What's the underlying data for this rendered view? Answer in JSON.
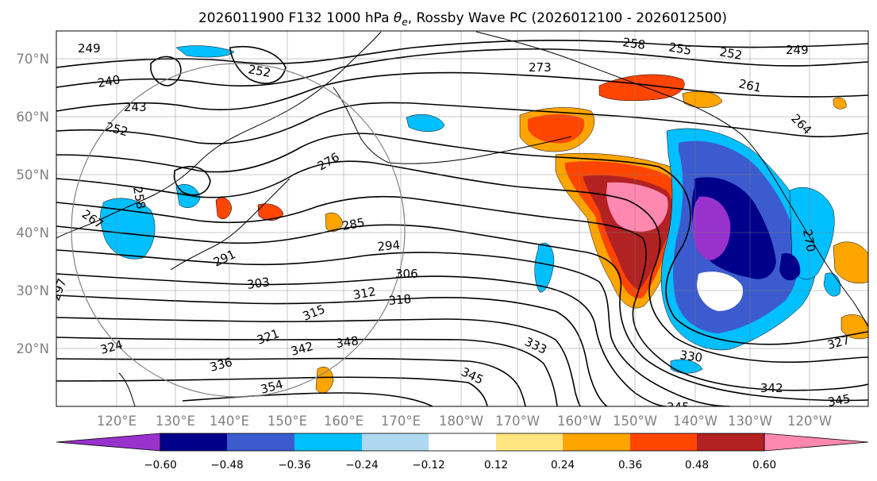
{
  "title_prefix": "2026011900 F132 1000 hPa ",
  "title_symbol": "θ",
  "title_subscript": "e",
  "title_suffix": ", Rossby Wave PC (2026012100 - 2026012500)",
  "lat_labels": [
    "70°N",
    "60°N",
    "50°N",
    "40°N",
    "30°N",
    "20°N"
  ],
  "lon_labels": [
    "120°E",
    "130°E",
    "140°E",
    "150°E",
    "160°E",
    "170°E",
    "180°W",
    "170°W",
    "160°W",
    "150°W",
    "140°W",
    "130°W",
    "120°W"
  ],
  "contour_labels": [
    "249",
    "240",
    "243",
    "252",
    "252",
    "258",
    "267",
    "258",
    "273",
    "255",
    "252",
    "249",
    "261",
    "264",
    "276",
    "285",
    "294",
    "291",
    "303",
    "306",
    "312",
    "315",
    "318",
    "297",
    "321",
    "324",
    "336",
    "342",
    "348",
    "354",
    "345",
    "333",
    "330",
    "327",
    "342",
    "345",
    "345",
    "270"
  ],
  "colorbar": {
    "levels": [
      "−0.60",
      "−0.48",
      "−0.36",
      "−0.24",
      "−0.12",
      "0.12",
      "0.24",
      "0.36",
      "0.48",
      "0.60"
    ],
    "colors": [
      "#9932cc",
      "#00008b",
      "#3b5bcf",
      "#00bfff",
      "#add8f0",
      "#ffffff",
      "#ffe680",
      "#ffa500",
      "#ff4500",
      "#b22222",
      "#ff88b0"
    ]
  }
}
